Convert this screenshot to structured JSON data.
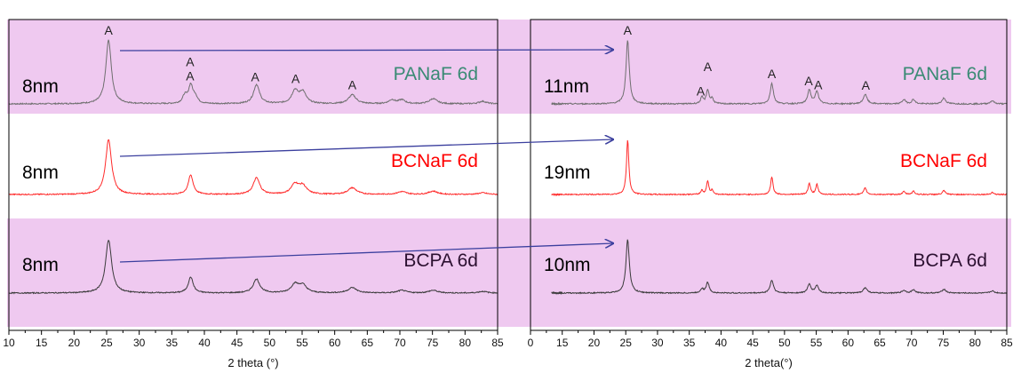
{
  "colors": {
    "band_fill": "#efc9f0",
    "frame": "#000000",
    "arrow": "#3b3f9e",
    "green_trace": "#6f6f6f",
    "red_trace": "#ff2a2a",
    "dark_trace": "#3a3a3a",
    "green_text": "#3a8a74",
    "red_text": "#ff0000",
    "dark_text": "#2b1030"
  },
  "chart_data": [
    {
      "type": "line",
      "panel": "left",
      "xlabel": "2 theta (°)",
      "xlim": [
        10,
        85
      ],
      "x_ticks": [
        "10",
        "15",
        "20",
        "25",
        "30",
        "35",
        "40",
        "45",
        "50",
        "55",
        "60",
        "65",
        "70",
        "75",
        "80",
        "85"
      ],
      "rows": [
        {
          "band": true,
          "size_label": "8nm",
          "sample_label": "PANaF 6d",
          "sample_color": "#3a8a74",
          "trace_color": "#6f6f6f",
          "peaks": [
            {
              "x": 25.3,
              "h": 1.0,
              "w": 0.5
            },
            {
              "x": 37.0,
              "h": 0.12,
              "w": 0.4
            },
            {
              "x": 37.9,
              "h": 0.28,
              "w": 0.4
            },
            {
              "x": 38.6,
              "h": 0.1,
              "w": 0.4
            },
            {
              "x": 48.0,
              "h": 0.3,
              "w": 0.55
            },
            {
              "x": 53.9,
              "h": 0.2,
              "w": 0.6
            },
            {
              "x": 55.1,
              "h": 0.18,
              "w": 0.6
            },
            {
              "x": 62.7,
              "h": 0.14,
              "w": 0.7
            },
            {
              "x": 68.8,
              "h": 0.06,
              "w": 0.6
            },
            {
              "x": 70.3,
              "h": 0.06,
              "w": 0.6
            },
            {
              "x": 75.1,
              "h": 0.08,
              "w": 0.7
            },
            {
              "x": 82.7,
              "h": 0.04,
              "w": 0.7
            }
          ],
          "annotations": [
            {
              "x": 25.3,
              "text": "A"
            },
            {
              "x": 37.8,
              "text": "A",
              "level": 2
            },
            {
              "x": 37.8,
              "text": "A",
              "level": 1
            },
            {
              "x": 47.8,
              "text": "A"
            },
            {
              "x": 54.0,
              "text": "A"
            },
            {
              "x": 62.7,
              "text": "A"
            }
          ]
        },
        {
          "band": false,
          "size_label": "8nm",
          "sample_label": "BCNaF 6d",
          "sample_color": "#ff0000",
          "trace_color": "#ff2a2a",
          "peaks": [
            {
              "x": 25.3,
              "h": 1.0,
              "w": 0.55
            },
            {
              "x": 37.9,
              "h": 0.35,
              "w": 0.45
            },
            {
              "x": 48.0,
              "h": 0.3,
              "w": 0.6
            },
            {
              "x": 53.9,
              "h": 0.18,
              "w": 0.7
            },
            {
              "x": 55.1,
              "h": 0.15,
              "w": 0.7
            },
            {
              "x": 62.7,
              "h": 0.12,
              "w": 0.8
            },
            {
              "x": 70.3,
              "h": 0.05,
              "w": 0.8
            },
            {
              "x": 75.1,
              "h": 0.06,
              "w": 0.8
            },
            {
              "x": 82.7,
              "h": 0.03,
              "w": 0.8
            }
          ],
          "annotations": []
        },
        {
          "band": true,
          "size_label": "8nm",
          "sample_label": "BCPA 6d",
          "sample_color": "#2b1030",
          "trace_color": "#3a3a3a",
          "peaks": [
            {
              "x": 25.3,
              "h": 1.0,
              "w": 0.55
            },
            {
              "x": 37.9,
              "h": 0.3,
              "w": 0.45
            },
            {
              "x": 48.0,
              "h": 0.26,
              "w": 0.6
            },
            {
              "x": 53.9,
              "h": 0.16,
              "w": 0.7
            },
            {
              "x": 55.1,
              "h": 0.14,
              "w": 0.7
            },
            {
              "x": 62.7,
              "h": 0.1,
              "w": 0.8
            },
            {
              "x": 70.3,
              "h": 0.05,
              "w": 0.8
            },
            {
              "x": 75.1,
              "h": 0.05,
              "w": 0.8
            },
            {
              "x": 82.7,
              "h": 0.03,
              "w": 0.8
            }
          ],
          "annotations": []
        }
      ]
    },
    {
      "type": "line",
      "panel": "right",
      "xlabel": "2 theta(°)",
      "xlim": [
        0,
        85
      ],
      "x_ticks": [
        "0",
        "15",
        "20",
        "25",
        "30",
        "35",
        "40",
        "45",
        "50",
        "55",
        "60",
        "65",
        "70",
        "75",
        "80",
        "85"
      ],
      "rows": [
        {
          "band": true,
          "size_label": "11nm",
          "sample_label": "PANaF 6d",
          "sample_color": "#3a8a74",
          "trace_color": "#6f6f6f",
          "peaks": [
            {
              "x": 25.3,
              "h": 1.0,
              "w": 0.3
            },
            {
              "x": 37.0,
              "h": 0.1,
              "w": 0.25
            },
            {
              "x": 37.9,
              "h": 0.22,
              "w": 0.25
            },
            {
              "x": 38.6,
              "h": 0.08,
              "w": 0.25
            },
            {
              "x": 48.0,
              "h": 0.32,
              "w": 0.3
            },
            {
              "x": 53.9,
              "h": 0.22,
              "w": 0.3
            },
            {
              "x": 55.1,
              "h": 0.2,
              "w": 0.3
            },
            {
              "x": 62.7,
              "h": 0.15,
              "w": 0.35
            },
            {
              "x": 68.8,
              "h": 0.07,
              "w": 0.3
            },
            {
              "x": 70.3,
              "h": 0.07,
              "w": 0.3
            },
            {
              "x": 75.1,
              "h": 0.09,
              "w": 0.35
            },
            {
              "x": 82.7,
              "h": 0.05,
              "w": 0.35
            }
          ],
          "annotations": [
            {
              "x": 25.3,
              "text": "A"
            },
            {
              "x": 36.8,
              "text": "A",
              "level": 1
            },
            {
              "x": 37.9,
              "text": "A",
              "level": 2
            },
            {
              "x": 48.0,
              "text": "A"
            },
            {
              "x": 53.8,
              "text": "A"
            },
            {
              "x": 55.3,
              "text": "A"
            },
            {
              "x": 62.8,
              "text": "A"
            }
          ]
        },
        {
          "band": false,
          "size_label": "19nm",
          "sample_label": "BCNaF 6d",
          "sample_color": "#ff0000",
          "trace_color": "#ff2a2a",
          "peaks": [
            {
              "x": 25.3,
              "h": 1.0,
              "w": 0.22
            },
            {
              "x": 37.0,
              "h": 0.08,
              "w": 0.2
            },
            {
              "x": 37.9,
              "h": 0.25,
              "w": 0.2
            },
            {
              "x": 38.6,
              "h": 0.08,
              "w": 0.2
            },
            {
              "x": 48.0,
              "h": 0.32,
              "w": 0.22
            },
            {
              "x": 53.9,
              "h": 0.2,
              "w": 0.22
            },
            {
              "x": 55.1,
              "h": 0.18,
              "w": 0.22
            },
            {
              "x": 62.7,
              "h": 0.12,
              "w": 0.25
            },
            {
              "x": 68.8,
              "h": 0.05,
              "w": 0.25
            },
            {
              "x": 70.3,
              "h": 0.06,
              "w": 0.25
            },
            {
              "x": 75.1,
              "h": 0.07,
              "w": 0.25
            },
            {
              "x": 82.7,
              "h": 0.04,
              "w": 0.25
            }
          ],
          "annotations": []
        },
        {
          "band": true,
          "size_label": "10nm",
          "sample_label": "BCPA 6d",
          "sample_color": "#2b1030",
          "trace_color": "#3a3a3a",
          "peaks": [
            {
              "x": 25.3,
              "h": 1.0,
              "w": 0.32
            },
            {
              "x": 37.0,
              "h": 0.08,
              "w": 0.28
            },
            {
              "x": 37.9,
              "h": 0.2,
              "w": 0.28
            },
            {
              "x": 48.0,
              "h": 0.24,
              "w": 0.32
            },
            {
              "x": 53.9,
              "h": 0.16,
              "w": 0.32
            },
            {
              "x": 55.1,
              "h": 0.14,
              "w": 0.32
            },
            {
              "x": 62.7,
              "h": 0.1,
              "w": 0.38
            },
            {
              "x": 68.8,
              "h": 0.05,
              "w": 0.35
            },
            {
              "x": 70.3,
              "h": 0.06,
              "w": 0.35
            },
            {
              "x": 75.1,
              "h": 0.07,
              "w": 0.38
            },
            {
              "x": 82.7,
              "h": 0.04,
              "w": 0.38
            }
          ],
          "annotations": []
        }
      ]
    }
  ]
}
